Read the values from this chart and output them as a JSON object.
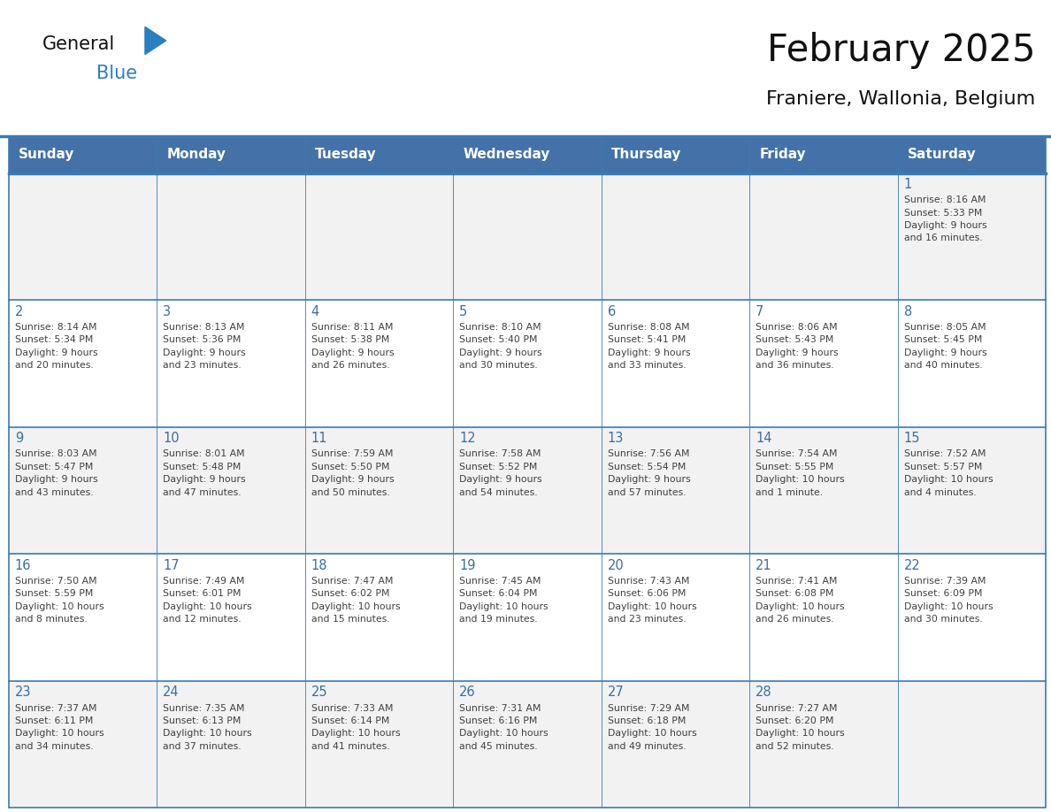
{
  "title": "February 2025",
  "subtitle": "Franiere, Wallonia, Belgium",
  "days_of_week": [
    "Sunday",
    "Monday",
    "Tuesday",
    "Wednesday",
    "Thursday",
    "Friday",
    "Saturday"
  ],
  "header_bg": "#4472a8",
  "header_text": "#ffffff",
  "cell_bg_odd": "#f2f2f2",
  "cell_bg_even": "#ffffff",
  "day_number_color": "#3a6ea5",
  "info_text_color": "#404040",
  "border_color": "#3a7ab5",
  "title_color": "#111111",
  "subtitle_color": "#111111",
  "logo_general_color": "#111111",
  "logo_blue_color": "#2a7fc1",
  "calendar_data": [
    [
      {
        "day": null,
        "info": ""
      },
      {
        "day": null,
        "info": ""
      },
      {
        "day": null,
        "info": ""
      },
      {
        "day": null,
        "info": ""
      },
      {
        "day": null,
        "info": ""
      },
      {
        "day": null,
        "info": ""
      },
      {
        "day": 1,
        "info": "Sunrise: 8:16 AM\nSunset: 5:33 PM\nDaylight: 9 hours\nand 16 minutes."
      }
    ],
    [
      {
        "day": 2,
        "info": "Sunrise: 8:14 AM\nSunset: 5:34 PM\nDaylight: 9 hours\nand 20 minutes."
      },
      {
        "day": 3,
        "info": "Sunrise: 8:13 AM\nSunset: 5:36 PM\nDaylight: 9 hours\nand 23 minutes."
      },
      {
        "day": 4,
        "info": "Sunrise: 8:11 AM\nSunset: 5:38 PM\nDaylight: 9 hours\nand 26 minutes."
      },
      {
        "day": 5,
        "info": "Sunrise: 8:10 AM\nSunset: 5:40 PM\nDaylight: 9 hours\nand 30 minutes."
      },
      {
        "day": 6,
        "info": "Sunrise: 8:08 AM\nSunset: 5:41 PM\nDaylight: 9 hours\nand 33 minutes."
      },
      {
        "day": 7,
        "info": "Sunrise: 8:06 AM\nSunset: 5:43 PM\nDaylight: 9 hours\nand 36 minutes."
      },
      {
        "day": 8,
        "info": "Sunrise: 8:05 AM\nSunset: 5:45 PM\nDaylight: 9 hours\nand 40 minutes."
      }
    ],
    [
      {
        "day": 9,
        "info": "Sunrise: 8:03 AM\nSunset: 5:47 PM\nDaylight: 9 hours\nand 43 minutes."
      },
      {
        "day": 10,
        "info": "Sunrise: 8:01 AM\nSunset: 5:48 PM\nDaylight: 9 hours\nand 47 minutes."
      },
      {
        "day": 11,
        "info": "Sunrise: 7:59 AM\nSunset: 5:50 PM\nDaylight: 9 hours\nand 50 minutes."
      },
      {
        "day": 12,
        "info": "Sunrise: 7:58 AM\nSunset: 5:52 PM\nDaylight: 9 hours\nand 54 minutes."
      },
      {
        "day": 13,
        "info": "Sunrise: 7:56 AM\nSunset: 5:54 PM\nDaylight: 9 hours\nand 57 minutes."
      },
      {
        "day": 14,
        "info": "Sunrise: 7:54 AM\nSunset: 5:55 PM\nDaylight: 10 hours\nand 1 minute."
      },
      {
        "day": 15,
        "info": "Sunrise: 7:52 AM\nSunset: 5:57 PM\nDaylight: 10 hours\nand 4 minutes."
      }
    ],
    [
      {
        "day": 16,
        "info": "Sunrise: 7:50 AM\nSunset: 5:59 PM\nDaylight: 10 hours\nand 8 minutes."
      },
      {
        "day": 17,
        "info": "Sunrise: 7:49 AM\nSunset: 6:01 PM\nDaylight: 10 hours\nand 12 minutes."
      },
      {
        "day": 18,
        "info": "Sunrise: 7:47 AM\nSunset: 6:02 PM\nDaylight: 10 hours\nand 15 minutes."
      },
      {
        "day": 19,
        "info": "Sunrise: 7:45 AM\nSunset: 6:04 PM\nDaylight: 10 hours\nand 19 minutes."
      },
      {
        "day": 20,
        "info": "Sunrise: 7:43 AM\nSunset: 6:06 PM\nDaylight: 10 hours\nand 23 minutes."
      },
      {
        "day": 21,
        "info": "Sunrise: 7:41 AM\nSunset: 6:08 PM\nDaylight: 10 hours\nand 26 minutes."
      },
      {
        "day": 22,
        "info": "Sunrise: 7:39 AM\nSunset: 6:09 PM\nDaylight: 10 hours\nand 30 minutes."
      }
    ],
    [
      {
        "day": 23,
        "info": "Sunrise: 7:37 AM\nSunset: 6:11 PM\nDaylight: 10 hours\nand 34 minutes."
      },
      {
        "day": 24,
        "info": "Sunrise: 7:35 AM\nSunset: 6:13 PM\nDaylight: 10 hours\nand 37 minutes."
      },
      {
        "day": 25,
        "info": "Sunrise: 7:33 AM\nSunset: 6:14 PM\nDaylight: 10 hours\nand 41 minutes."
      },
      {
        "day": 26,
        "info": "Sunrise: 7:31 AM\nSunset: 6:16 PM\nDaylight: 10 hours\nand 45 minutes."
      },
      {
        "day": 27,
        "info": "Sunrise: 7:29 AM\nSunset: 6:18 PM\nDaylight: 10 hours\nand 49 minutes."
      },
      {
        "day": 28,
        "info": "Sunrise: 7:27 AM\nSunset: 6:20 PM\nDaylight: 10 hours\nand 52 minutes."
      },
      {
        "day": null,
        "info": ""
      }
    ]
  ]
}
